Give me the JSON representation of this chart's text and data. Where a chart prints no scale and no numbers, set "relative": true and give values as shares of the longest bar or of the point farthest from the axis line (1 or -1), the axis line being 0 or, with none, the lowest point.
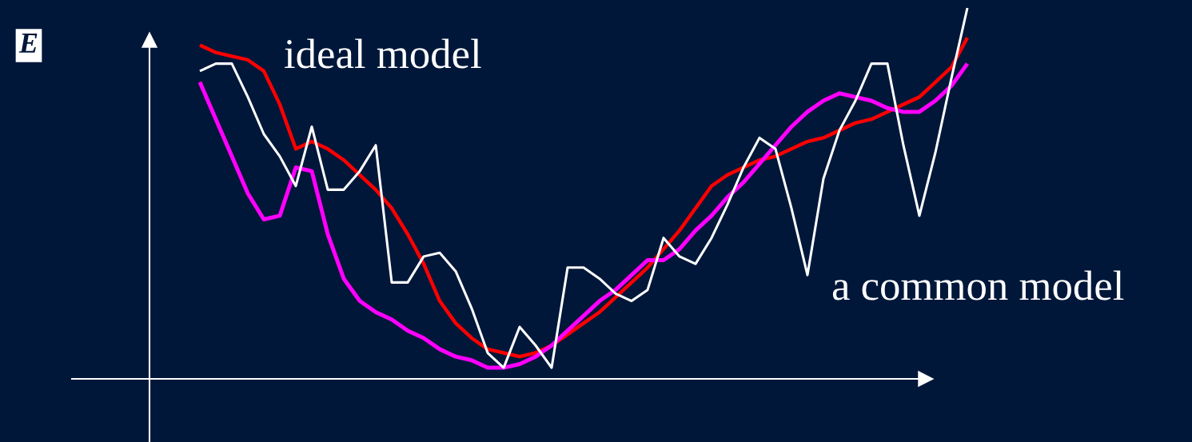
{
  "chart_data": {
    "type": "line",
    "relative": true,
    "annotations": [
      "E"
    ],
    "legend": false,
    "marker": "none",
    "line_style": "solid",
    "categories": [
      null,
      null,
      null,
      null,
      null,
      null,
      null,
      null,
      null,
      null,
      null,
      null,
      null,
      null,
      null,
      null,
      null,
      null,
      null,
      null,
      null,
      null,
      null,
      null,
      null,
      null,
      null,
      null,
      null,
      null,
      null,
      null,
      null,
      null,
      null,
      null,
      null,
      null,
      null,
      null,
      null,
      null,
      null,
      null,
      null,
      null,
      null,
      null,
      null
    ],
    "series": [
      {
        "name": "ideal model",
        "color": "#ff0000",
        "values": [
          0.9,
          0.88,
          0.87,
          0.86,
          0.83,
          0.74,
          0.62,
          0.64,
          0.62,
          0.59,
          0.55,
          0.51,
          0.46,
          0.39,
          0.31,
          0.21,
          0.15,
          0.11,
          0.08,
          0.07,
          0.06,
          0.07,
          0.09,
          0.12,
          0.15,
          0.18,
          0.22,
          0.26,
          0.3,
          0.35,
          0.4,
          0.46,
          0.52,
          0.55,
          0.57,
          0.59,
          0.6,
          0.62,
          0.64,
          0.65,
          0.67,
          0.69,
          0.7,
          0.72,
          0.74,
          0.76,
          0.8,
          0.84,
          0.92
        ]
      },
      {
        "name": "a common model",
        "color": "#ffffff",
        "values": [
          0.83,
          0.85,
          0.85,
          0.76,
          0.66,
          0.6,
          0.52,
          0.68,
          0.51,
          0.51,
          0.56,
          0.63,
          0.26,
          0.26,
          0.33,
          0.34,
          0.29,
          0.19,
          0.07,
          0.03,
          0.14,
          0.09,
          0.03,
          0.3,
          0.3,
          0.27,
          0.23,
          0.21,
          0.24,
          0.38,
          0.33,
          0.31,
          0.38,
          0.47,
          0.57,
          0.65,
          0.62,
          0.46,
          0.28,
          0.54,
          0.67,
          0.75,
          0.85,
          0.85,
          0.63,
          0.44,
          0.61,
          0.81,
          1.0
        ]
      },
      {
        "color": "#ff00ff",
        "values": [
          0.8,
          0.7,
          0.6,
          0.5,
          0.43,
          0.44,
          0.57,
          0.56,
          0.39,
          0.27,
          0.21,
          0.18,
          0.16,
          0.13,
          0.11,
          0.08,
          0.06,
          0.05,
          0.03,
          0.03,
          0.04,
          0.06,
          0.09,
          0.13,
          0.17,
          0.21,
          0.24,
          0.28,
          0.32,
          0.32,
          0.35,
          0.4,
          0.44,
          0.49,
          0.53,
          0.58,
          0.63,
          0.68,
          0.72,
          0.75,
          0.77,
          0.76,
          0.75,
          0.73,
          0.72,
          0.72,
          0.75,
          0.79,
          0.85
        ]
      }
    ]
  }
}
